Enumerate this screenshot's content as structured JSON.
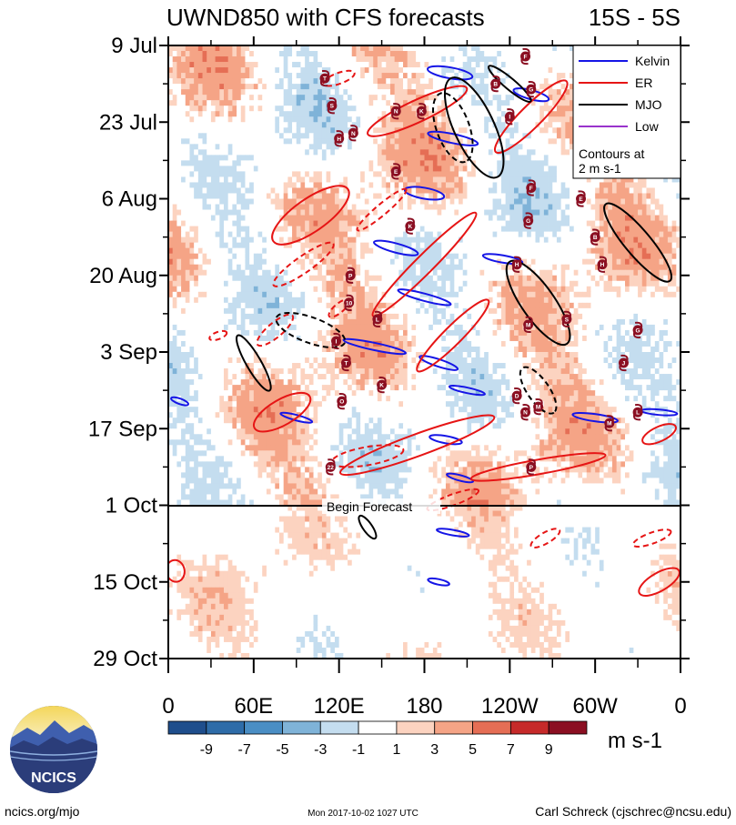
{
  "chart_data": {
    "type": "heatmap",
    "title": "UWND850 with CFS forecasts",
    "region_label": "15S - 5S",
    "x_axis": {
      "ticks": [
        {
          "lon": 0,
          "label": "0"
        },
        {
          "lon": 60,
          "label": "60E"
        },
        {
          "lon": 120,
          "label": "120E"
        },
        {
          "lon": 180,
          "label": "180"
        },
        {
          "lon": 240,
          "label": "120W"
        },
        {
          "lon": 300,
          "label": "60W"
        },
        {
          "lon": 360,
          "label": "0"
        }
      ],
      "range": [
        0,
        360
      ]
    },
    "y_axis": {
      "ticks": [
        {
          "day": 0,
          "label": "9 Jul"
        },
        {
          "day": 14,
          "label": "23 Jul"
        },
        {
          "day": 28,
          "label": "6 Aug"
        },
        {
          "day": 42,
          "label": "20 Aug"
        },
        {
          "day": 56,
          "label": "3 Sep"
        },
        {
          "day": 70,
          "label": "17 Sep"
        },
        {
          "day": 84,
          "label": "1 Oct"
        },
        {
          "day": 98,
          "label": "15 Oct"
        },
        {
          "day": 112,
          "label": "29 Oct"
        }
      ],
      "range_days": [
        0,
        112
      ]
    },
    "forecast_start_day": 84,
    "forecast_label": "Begin Forecast",
    "colorbar": {
      "unit_label": "m s-1",
      "tick_labels": [
        "-9",
        "-7",
        "-5",
        "-3",
        "-1",
        "1",
        "3",
        "5",
        "7",
        "9"
      ],
      "bins": [
        {
          "color": "#1f4e8c"
        },
        {
          "color": "#2e6ca8"
        },
        {
          "color": "#4a8ec4"
        },
        {
          "color": "#7fb3d8"
        },
        {
          "color": "#c4ddef"
        },
        {
          "color": "#ffffff"
        },
        {
          "color": "#fcd3c0"
        },
        {
          "color": "#f5a486"
        },
        {
          "color": "#e56e55"
        },
        {
          "color": "#c62a2a"
        },
        {
          "color": "#8b0f22"
        }
      ]
    },
    "legend": {
      "items": [
        {
          "label": "Kelvin",
          "color": "#1515e6"
        },
        {
          "label": "ER",
          "color": "#e61515"
        },
        {
          "label": "MJO",
          "color": "#000000"
        },
        {
          "label": "Low",
          "color": "#9933cc"
        }
      ],
      "note_line1": "Contours at",
      "note_line2": "2 m s-1"
    },
    "storm_markers": [
      "F",
      "T",
      "B",
      "G",
      "S",
      "K",
      "N",
      "I",
      "H",
      "N",
      "E",
      "11",
      "F",
      "E",
      "G",
      "B",
      "K",
      "H",
      "H",
      "P",
      "10",
      "S",
      "L",
      "M",
      "I",
      "G",
      "T",
      "K",
      "J",
      "D",
      "O",
      "N",
      "M",
      "L",
      "M",
      "22",
      "P"
    ]
  },
  "footer": {
    "logo_text": "NCICS",
    "left": "ncics.org/mjo",
    "center": "Mon 2017-10-02 1027 UTC",
    "right": "Carl Schreck (cjschrec@ncsu.edu)"
  }
}
